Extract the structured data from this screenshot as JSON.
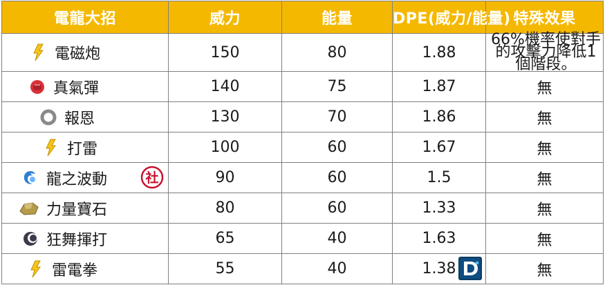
{
  "header": {
    "col_move": "電龍大招",
    "col_power": "威力",
    "col_energy": "能量",
    "col_dpe": "DPE(威力/能量)",
    "col_effect": "特殊效果"
  },
  "rows": [
    {
      "icon": "electric-type-icon",
      "name": "電磁炮",
      "power": "150",
      "energy": "80",
      "dpe": "1.88",
      "effect": "66%機率使對手的攻擊力降低1個階段。"
    },
    {
      "icon": "fighting-type-icon",
      "name": "真氣彈",
      "power": "140",
      "energy": "75",
      "dpe": "1.87",
      "effect": "無"
    },
    {
      "icon": "normal-type-icon",
      "name": "報恩",
      "power": "130",
      "energy": "70",
      "dpe": "1.86",
      "effect": "無"
    },
    {
      "icon": "electric-type-icon",
      "name": "打雷",
      "power": "100",
      "energy": "60",
      "dpe": "1.67",
      "effect": "無"
    },
    {
      "icon": "dragon-type-icon",
      "name": "龍之波動",
      "power": "90",
      "energy": "60",
      "dpe": "1.5",
      "effect": "無"
    },
    {
      "icon": "rock-type-icon",
      "name": "力量寶石",
      "power": "80",
      "energy": "60",
      "dpe": "1.33",
      "effect": "無"
    },
    {
      "icon": "dark-type-icon",
      "name": "狂舞揮打",
      "power": "65",
      "energy": "40",
      "dpe": "1.63",
      "effect": "無"
    },
    {
      "icon": "electric-type-icon",
      "name": "雷電拳",
      "power": "55",
      "energy": "40",
      "dpe": "1.38",
      "effect": "無"
    }
  ],
  "badges": {
    "community_day": "社"
  },
  "colors": {
    "header_bg": "#f5b800",
    "header_text": "#ffffff",
    "border": "#7f7f7f"
  }
}
